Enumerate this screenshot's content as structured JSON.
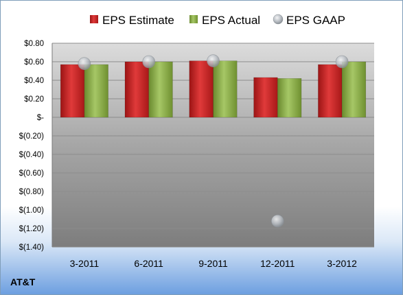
{
  "company": "AT&T",
  "chart_data": {
    "type": "bar",
    "categories": [
      "3-2011",
      "6-2011",
      "9-2011",
      "12-2011",
      "3-2012"
    ],
    "series": [
      {
        "name": "EPS Estimate",
        "kind": "bar",
        "color": "#d42a2a",
        "values": [
          0.57,
          0.6,
          0.61,
          0.43,
          0.57
        ]
      },
      {
        "name": "EPS Actual",
        "kind": "bar",
        "color": "#8db347",
        "values": [
          0.57,
          0.6,
          0.61,
          0.42,
          0.6
        ]
      },
      {
        "name": "EPS GAAP",
        "kind": "marker",
        "color": "#b7bcc2",
        "values": [
          0.58,
          0.6,
          0.61,
          -1.12,
          0.6
        ]
      }
    ],
    "ylim": [
      -1.4,
      0.8
    ],
    "yticks": [
      0.8,
      0.6,
      0.4,
      0.2,
      0,
      -0.2,
      -0.4,
      -0.6,
      -0.8,
      -1.0,
      -1.2,
      -1.4
    ],
    "ytick_labels": [
      "$0.80",
      "$0.60",
      "$0.40",
      "$0.20",
      "$-",
      "$(0.20)",
      "$(0.40)",
      "$(0.60)",
      "$(0.80)",
      "$(1.00)",
      "$(1.20)",
      "$(1.40)"
    ],
    "legend_position": "top",
    "grid": true
  }
}
